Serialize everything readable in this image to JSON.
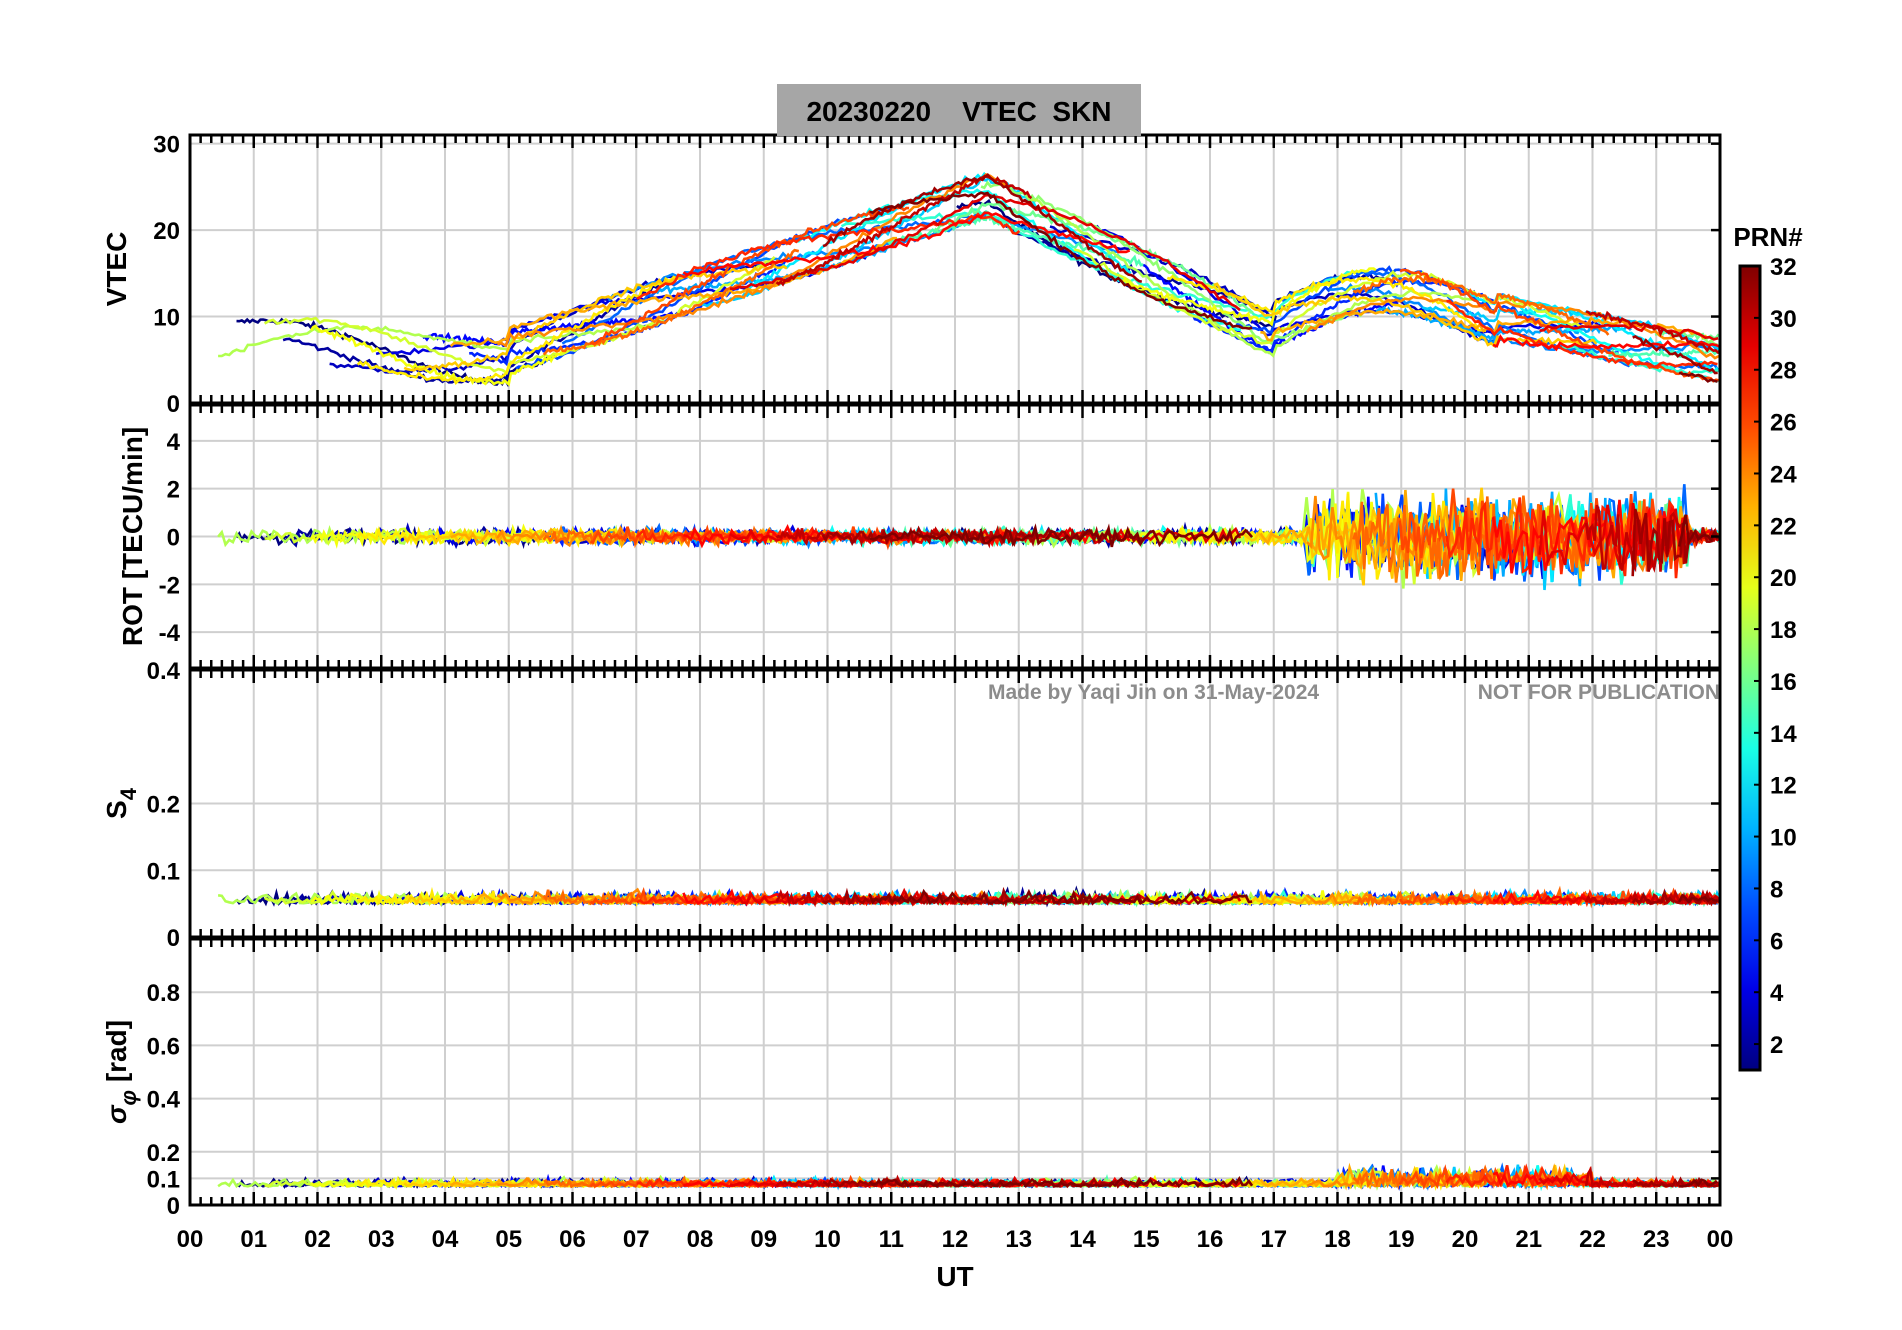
{
  "figure": {
    "title": "20230220    VTEC  SKN",
    "watermark_author": "Made by Yaqi Jin on 31-May-2024",
    "watermark_notice": "NOT FOR PUBLICATION",
    "colors": {
      "title_box": "#a6a6a6",
      "watermark": "#8c8c8c",
      "grid": "#cfcfcf"
    }
  },
  "chart_data": [
    {
      "type": "line",
      "name": "vtec",
      "ylabel": "VTEC",
      "ylim": [
        0,
        31
      ],
      "yticks": [
        "0",
        "10",
        "20",
        "30"
      ],
      "ytick_values": [
        0,
        10,
        20,
        30
      ],
      "xlim": [
        0,
        24
      ],
      "series_note": "32 GPS satellite tracks (PRN 1-32), colored by PRN"
    },
    {
      "type": "line",
      "name": "rot",
      "ylabel": "ROT [TECU/min]",
      "ylim": [
        -5.5,
        5.5
      ],
      "yticks": [
        "-4",
        "-2",
        "0",
        "2",
        "4"
      ],
      "ytick_values": [
        -4,
        -2,
        0,
        2,
        4
      ],
      "xlim": [
        0,
        24
      ]
    },
    {
      "type": "line",
      "name": "s4",
      "ylabel_main": "S",
      "ylabel_sub": "4",
      "ylim": [
        0,
        0.4
      ],
      "yticks": [
        "0",
        "0.1",
        "0.2",
        "0.4"
      ],
      "ytick_values": [
        0,
        0.1,
        0.2,
        0.4
      ],
      "xlim": [
        0,
        24
      ]
    },
    {
      "type": "line",
      "name": "sigma_phi",
      "ylabel_main": "σ",
      "ylabel_sub": "φ",
      "ylabel_unit": " [rad]",
      "ylim": [
        0,
        1
      ],
      "yticks": [
        "0",
        "0.1",
        "0.2",
        "0.4",
        "0.6",
        "0.8"
      ],
      "ytick_values": [
        0,
        0.1,
        0.2,
        0.4,
        0.6,
        0.8
      ],
      "xlim": [
        0,
        24
      ]
    }
  ],
  "x_axis": {
    "label": "UT",
    "ticks": [
      "00",
      "01",
      "02",
      "03",
      "04",
      "05",
      "06",
      "07",
      "08",
      "09",
      "10",
      "11",
      "12",
      "13",
      "14",
      "15",
      "16",
      "17",
      "18",
      "19",
      "20",
      "21",
      "22",
      "23",
      "00"
    ]
  },
  "colorbar": {
    "label": "PRN#",
    "range": [
      1,
      32
    ],
    "ticks": [
      "2",
      "4",
      "6",
      "8",
      "10",
      "12",
      "14",
      "16",
      "18",
      "20",
      "22",
      "24",
      "26",
      "28",
      "30",
      "32"
    ],
    "tick_values": [
      2,
      4,
      6,
      8,
      10,
      12,
      14,
      16,
      18,
      20,
      22,
      24,
      26,
      28,
      30,
      32
    ],
    "colormap": "jet"
  }
}
